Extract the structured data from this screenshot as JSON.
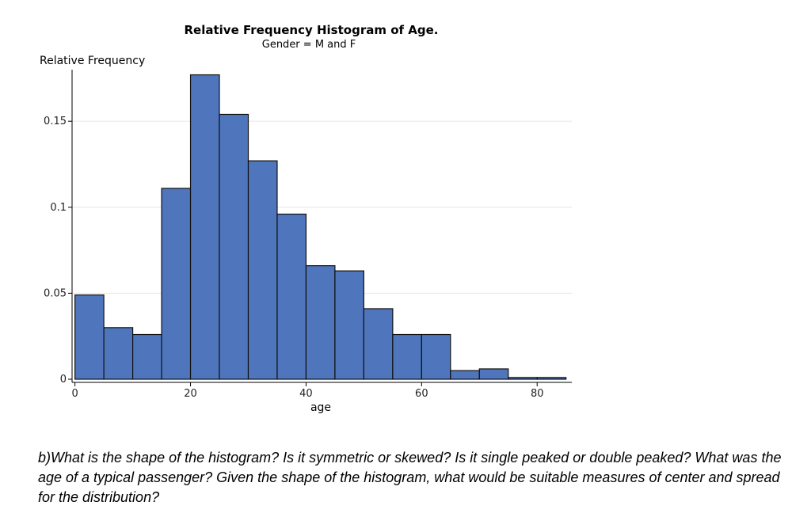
{
  "chart_data": {
    "type": "bar",
    "title": "Relative Frequency Histogram of Age.",
    "subtitle": "Gender = M and F",
    "xlabel": "age",
    "ylabel": "Relative Frequency",
    "bin_width": 5,
    "x_ticks": [
      0,
      20,
      40,
      60,
      80
    ],
    "x_tick_labels": [
      "0",
      "20",
      "40",
      "60",
      "80"
    ],
    "y_ticks": [
      0,
      0.05,
      0.1,
      0.15
    ],
    "y_tick_labels": [
      "0",
      "0.05",
      "0.1",
      "0.15"
    ],
    "xlim": [
      -0.5,
      86
    ],
    "ylim": [
      0,
      0.18
    ],
    "grid": true,
    "bar_color": "#4f76bd",
    "bins": [
      {
        "start": 0,
        "end": 5,
        "value": 0.049
      },
      {
        "start": 5,
        "end": 10,
        "value": 0.03
      },
      {
        "start": 10,
        "end": 15,
        "value": 0.026
      },
      {
        "start": 15,
        "end": 20,
        "value": 0.111
      },
      {
        "start": 20,
        "end": 25,
        "value": 0.177
      },
      {
        "start": 25,
        "end": 30,
        "value": 0.154
      },
      {
        "start": 30,
        "end": 35,
        "value": 0.127
      },
      {
        "start": 35,
        "end": 40,
        "value": 0.096
      },
      {
        "start": 40,
        "end": 45,
        "value": 0.066
      },
      {
        "start": 45,
        "end": 50,
        "value": 0.063
      },
      {
        "start": 50,
        "end": 55,
        "value": 0.041
      },
      {
        "start": 55,
        "end": 60,
        "value": 0.026
      },
      {
        "start": 60,
        "end": 65,
        "value": 0.026
      },
      {
        "start": 65,
        "end": 70,
        "value": 0.005
      },
      {
        "start": 70,
        "end": 75,
        "value": 0.006
      },
      {
        "start": 75,
        "end": 80,
        "value": 0.001
      },
      {
        "start": 80,
        "end": 85,
        "value": 0.001
      }
    ]
  },
  "question": "b)What is the shape of the histogram? Is it symmetric or skewed? Is it single peaked or double peaked? What was the age of a typical passenger? Given the shape of the histogram, what would be suitable measures of center and spread for the distribution?"
}
